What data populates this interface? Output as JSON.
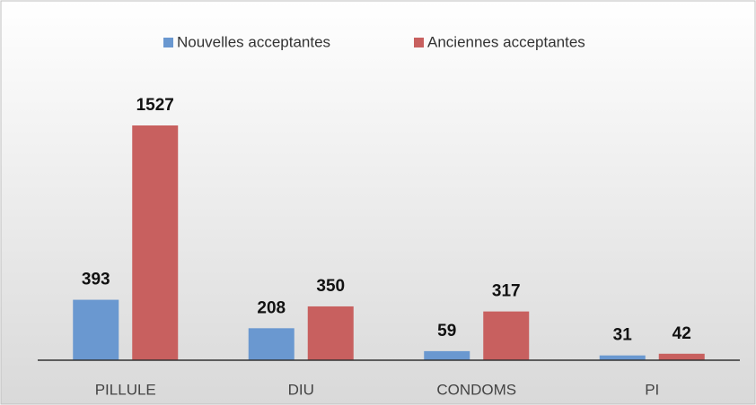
{
  "chart_data": {
    "type": "bar",
    "categories": [
      "PILLULE",
      "DIU",
      "CONDOMS",
      "PI"
    ],
    "series": [
      {
        "name": "Nouvelles acceptantes",
        "color": "#6a98d0",
        "values": [
          393,
          208,
          59,
          31
        ]
      },
      {
        "name": "Anciennes acceptantes",
        "color": "#c8605f",
        "values": [
          1527,
          350,
          317,
          42
        ]
      }
    ],
    "legend": "top"
  }
}
